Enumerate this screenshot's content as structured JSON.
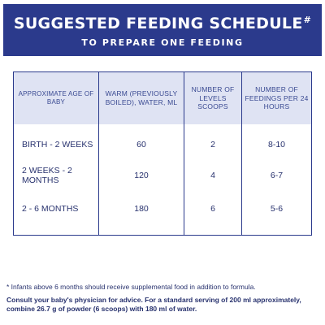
{
  "banner": {
    "title": "SUGGESTED FEEDING SCHEDULE",
    "title_mark": "#",
    "subtitle": "TO PREPARE ONE FEEDING",
    "background_color": "#2b3a8c"
  },
  "table": {
    "headers": [
      "APPROXIMATE AGE OF BABY",
      "WARM (PREVIOUSLY BOILED), WATER, ML",
      "NUMBER OF LEVELS SCOOPS",
      "NUMBER OF FEEDINGS PER 24 HOURS"
    ],
    "rows": [
      [
        "BIRTH - 2 WEEKS",
        "60",
        "2",
        "8-10"
      ],
      [
        "2 WEEKS - 2 MONTHS",
        "120",
        "4",
        "6-7"
      ],
      [
        "2 - 6 MONTHS",
        "180",
        "6",
        "5-6"
      ]
    ],
    "header_background": "#dfe3f3"
  },
  "footnote": "* Infants above 6 months should receive supplemental food in addition to formula.",
  "note": "Consult your baby's physician for advice. For a standard serving of 200 ml approximately, combine 26.7 g of powder (6 scoops) with 180 ml of water."
}
